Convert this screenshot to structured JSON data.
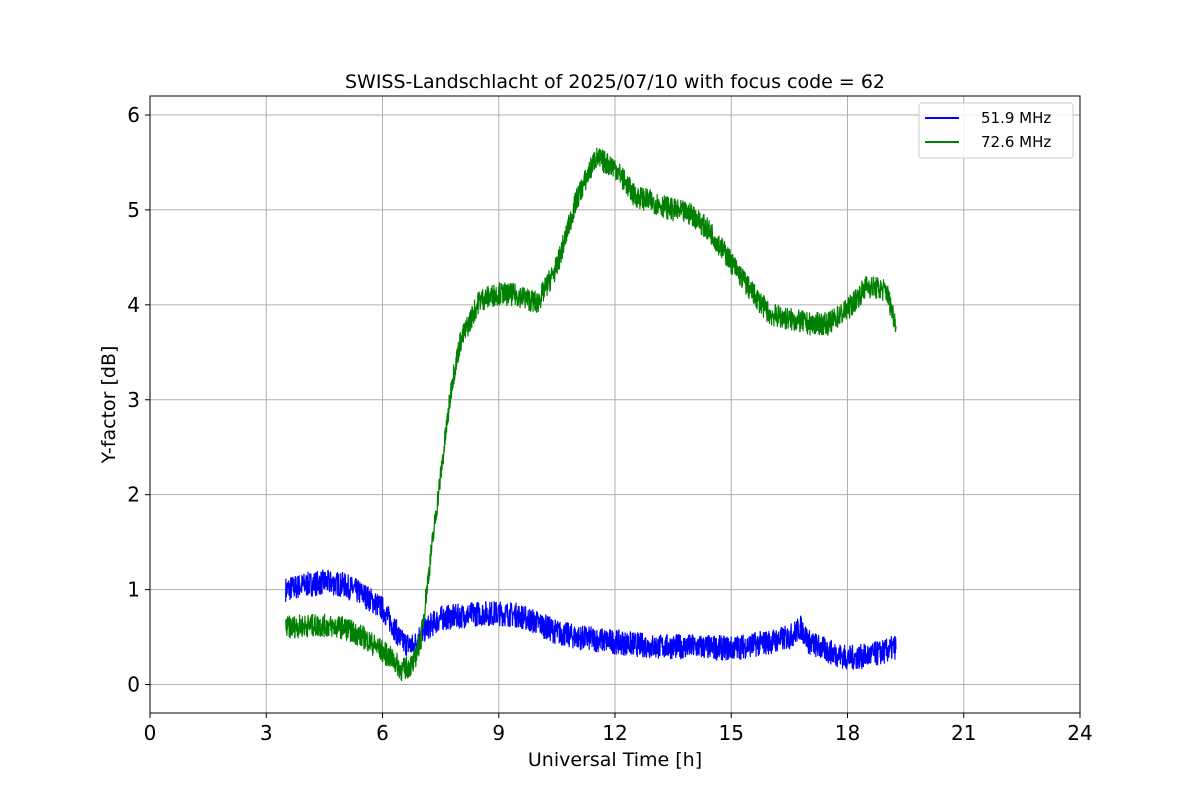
{
  "chart_data": {
    "type": "line",
    "title": "SWISS-Landschlacht of 2025/07/10 with focus code = 62",
    "xlabel": "Universal Time [h]",
    "ylabel": "Y-factor [dB]",
    "xlim": [
      0,
      24
    ],
    "ylim": [
      -0.3,
      6.2
    ],
    "xticks": [
      0,
      3,
      6,
      9,
      12,
      15,
      18,
      21,
      24
    ],
    "yticks": [
      0,
      1,
      2,
      3,
      4,
      5,
      6
    ],
    "grid": true,
    "legend_position": "top-right",
    "series": [
      {
        "name": "51.9 MHz",
        "color": "#0000ff",
        "noise": 0.13,
        "x": [
          3.5,
          4.0,
          4.5,
          5.0,
          5.5,
          6.0,
          6.3,
          6.5,
          6.8,
          7.0,
          7.5,
          8.0,
          8.5,
          9.0,
          9.5,
          10.0,
          10.5,
          11.0,
          12.0,
          13.0,
          14.0,
          15.0,
          16.0,
          16.5,
          16.8,
          17.0,
          17.5,
          18.0,
          18.5,
          19.0,
          19.25
        ],
        "y": [
          1.0,
          1.05,
          1.08,
          1.05,
          0.95,
          0.8,
          0.6,
          0.45,
          0.4,
          0.55,
          0.7,
          0.72,
          0.75,
          0.75,
          0.73,
          0.65,
          0.55,
          0.5,
          0.45,
          0.4,
          0.4,
          0.38,
          0.45,
          0.5,
          0.6,
          0.45,
          0.35,
          0.28,
          0.3,
          0.35,
          0.4
        ]
      },
      {
        "name": "72.6 MHz",
        "color": "#008000",
        "noise": 0.12,
        "x": [
          3.5,
          4.0,
          4.5,
          5.0,
          5.5,
          6.0,
          6.3,
          6.5,
          6.8,
          7.0,
          7.2,
          7.5,
          7.8,
          8.0,
          8.5,
          9.0,
          9.5,
          10.0,
          10.5,
          11.0,
          11.5,
          12.0,
          12.5,
          13.0,
          13.5,
          14.0,
          14.5,
          15.0,
          15.5,
          16.0,
          16.5,
          17.0,
          17.5,
          18.0,
          18.5,
          19.0,
          19.25
        ],
        "y": [
          0.6,
          0.62,
          0.62,
          0.6,
          0.5,
          0.35,
          0.25,
          0.15,
          0.22,
          0.5,
          1.2,
          2.2,
          3.2,
          3.6,
          4.05,
          4.12,
          4.1,
          4.02,
          4.4,
          5.1,
          5.55,
          5.45,
          5.15,
          5.08,
          5.0,
          4.95,
          4.75,
          4.45,
          4.15,
          3.9,
          3.85,
          3.8,
          3.8,
          3.95,
          4.2,
          4.15,
          3.8
        ]
      }
    ]
  }
}
